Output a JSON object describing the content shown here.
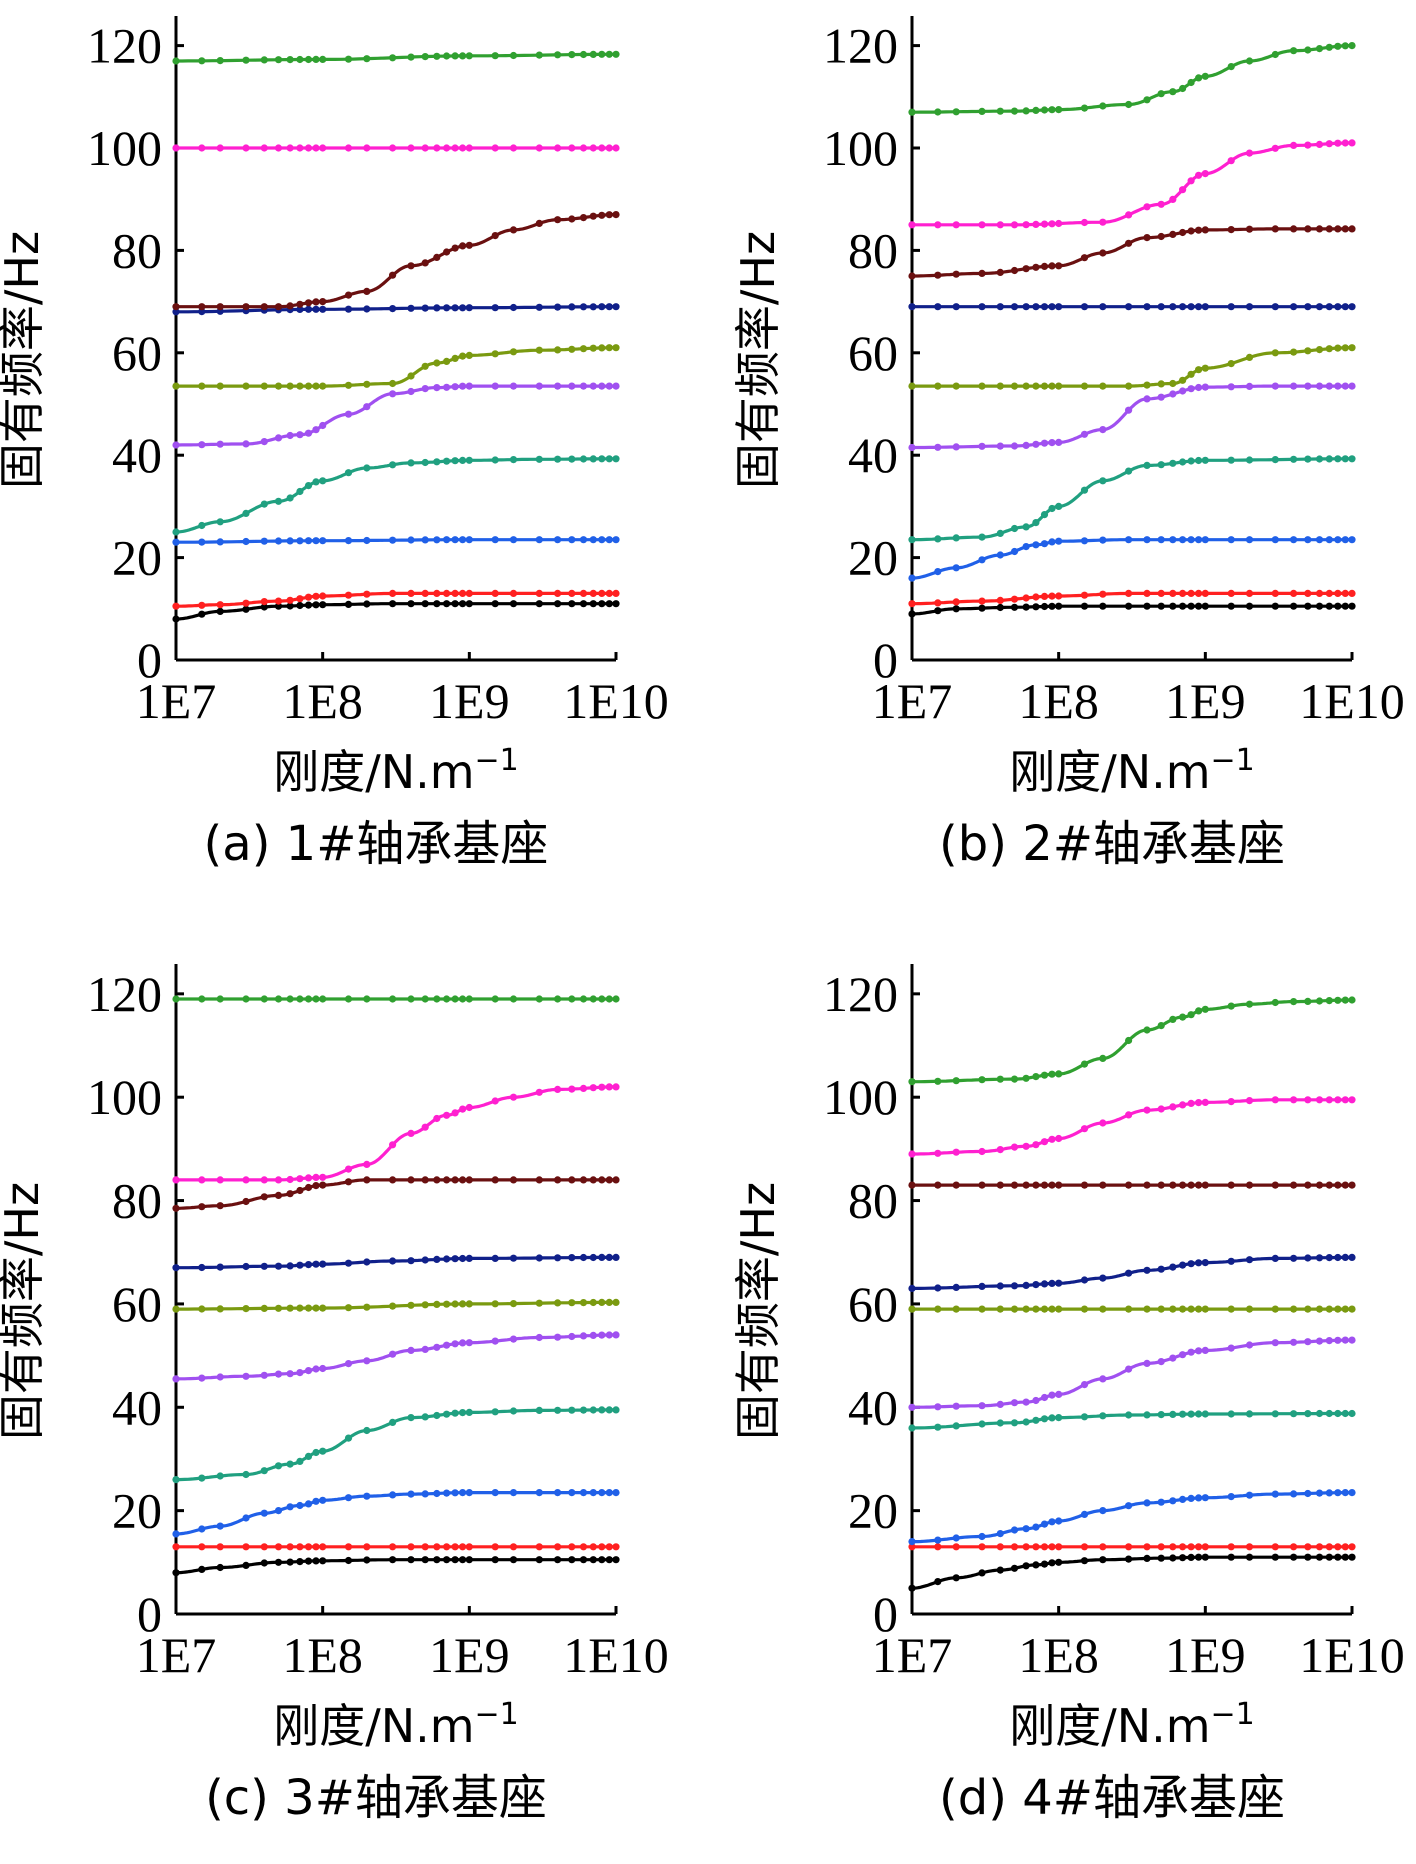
{
  "chart_data": [
    {
      "type": "line",
      "caption": "(a) 1#轴承基座",
      "xlabel_main": "刚度/N.m",
      "xlabel_sup": "−1",
      "ylabel": "固有频率/Hz",
      "x_scale": "log",
      "xlim": [
        10000000.0,
        10000000000.0
      ],
      "ylim": [
        0,
        125
      ],
      "x_ticks": [
        10000000.0,
        100000000.0,
        1000000000.0,
        10000000000.0
      ],
      "x_tick_labels": [
        "1E7",
        "1E8",
        "1E9",
        "1E10"
      ],
      "y_ticks": [
        0,
        20,
        40,
        60,
        80,
        100,
        120
      ],
      "y_tick_labels": [
        "0",
        "20",
        "40",
        "60",
        "80",
        "100",
        "120"
      ],
      "series": [
        {
          "color": "#000000",
          "x": [
            10000000.0,
            20000000.0,
            50000000.0,
            100000000.0,
            300000000.0,
            1000000000.0,
            3000000000.0,
            10000000000.0
          ],
          "y": [
            8,
            9.5,
            10.5,
            10.8,
            11,
            11,
            11,
            11
          ]
        },
        {
          "color": "#ff2020",
          "x": [
            10000000.0,
            20000000.0,
            50000000.0,
            100000000.0,
            300000000.0,
            1000000000.0,
            3000000000.0,
            10000000000.0
          ],
          "y": [
            10.5,
            10.8,
            11.5,
            12.5,
            13,
            13,
            13,
            13
          ]
        },
        {
          "color": "#2060e8",
          "x": [
            10000000.0,
            100000000.0,
            1000000000.0,
            10000000000.0
          ],
          "y": [
            23,
            23.3,
            23.5,
            23.5
          ]
        },
        {
          "color": "#20a080",
          "x": [
            10000000.0,
            20000000.0,
            50000000.0,
            100000000.0,
            200000000.0,
            400000000.0,
            1000000000.0,
            3000000000.0,
            10000000000.0
          ],
          "y": [
            25,
            27,
            31,
            35,
            37.5,
            38.5,
            39,
            39.2,
            39.3
          ]
        },
        {
          "color": "#a050f0",
          "x": [
            10000000.0,
            30000000.0,
            70000000.0,
            150000000.0,
            300000000.0,
            600000000.0,
            1000000000.0,
            10000000000.0
          ],
          "y": [
            42,
            42.2,
            44,
            48,
            52,
            53.2,
            53.5,
            53.5
          ]
        },
        {
          "color": "#7a9a10",
          "x": [
            10000000.0,
            100000000.0,
            300000000.0,
            600000000.0,
            1000000000.0,
            3000000000.0,
            10000000000.0
          ],
          "y": [
            53.5,
            53.5,
            54,
            58,
            59.5,
            60.5,
            61
          ]
        },
        {
          "color": "#10208a",
          "x": [
            10000000.0,
            100000000.0,
            1000000000.0,
            10000000000.0
          ],
          "y": [
            68,
            68.5,
            68.8,
            69
          ]
        },
        {
          "color": "#6a1010",
          "x": [
            10000000.0,
            50000000.0,
            100000000.0,
            200000000.0,
            400000000.0,
            1000000000.0,
            2000000000.0,
            4000000000.0,
            10000000000.0
          ],
          "y": [
            69,
            69,
            70,
            72,
            77,
            81,
            84,
            86,
            87
          ]
        },
        {
          "color": "#ff20d0",
          "x": [
            10000000.0,
            100000000.0,
            1000000000.0,
            10000000000.0
          ],
          "y": [
            100,
            100,
            100,
            100
          ]
        },
        {
          "color": "#30a030",
          "x": [
            10000000.0,
            100000000.0,
            1000000000.0,
            10000000000.0
          ],
          "y": [
            117,
            117.3,
            118,
            118.3
          ]
        }
      ]
    },
    {
      "type": "line",
      "caption": "(b) 2#轴承基座",
      "xlabel_main": "刚度/N.m",
      "xlabel_sup": "−1",
      "ylabel": "固有频率/Hz",
      "x_scale": "log",
      "xlim": [
        10000000.0,
        10000000000.0
      ],
      "ylim": [
        0,
        125
      ],
      "x_ticks": [
        10000000.0,
        100000000.0,
        1000000000.0,
        10000000000.0
      ],
      "x_tick_labels": [
        "1E7",
        "1E8",
        "1E9",
        "1E10"
      ],
      "y_ticks": [
        0,
        20,
        40,
        60,
        80,
        100,
        120
      ],
      "y_tick_labels": [
        "0",
        "20",
        "40",
        "60",
        "80",
        "100",
        "120"
      ],
      "series": [
        {
          "color": "#000000",
          "x": [
            10000000.0,
            20000000.0,
            50000000.0,
            100000000.0,
            300000000.0,
            1000000000.0,
            10000000000.0
          ],
          "y": [
            9,
            10,
            10.3,
            10.5,
            10.5,
            10.5,
            10.5
          ]
        },
        {
          "color": "#ff2020",
          "x": [
            10000000.0,
            30000000.0,
            100000000.0,
            300000000.0,
            1000000000.0,
            10000000000.0
          ],
          "y": [
            11,
            11.5,
            12.5,
            13,
            13,
            13
          ]
        },
        {
          "color": "#2060e8",
          "x": [
            10000000.0,
            20000000.0,
            40000000.0,
            70000000.0,
            100000000.0,
            300000000.0,
            1000000000.0,
            10000000000.0
          ],
          "y": [
            16,
            18,
            20.5,
            22.5,
            23.2,
            23.5,
            23.5,
            23.5
          ]
        },
        {
          "color": "#20a080",
          "x": [
            10000000.0,
            30000000.0,
            60000000.0,
            100000000.0,
            200000000.0,
            400000000.0,
            1000000000.0,
            10000000000.0
          ],
          "y": [
            23.5,
            24,
            26,
            30,
            35,
            38,
            39,
            39.3
          ]
        },
        {
          "color": "#a050f0",
          "x": [
            10000000.0,
            50000000.0,
            100000000.0,
            200000000.0,
            400000000.0,
            1000000000.0,
            3000000000.0,
            10000000000.0
          ],
          "y": [
            41.5,
            41.8,
            42.5,
            45,
            51,
            53.3,
            53.5,
            53.5
          ]
        },
        {
          "color": "#7a9a10",
          "x": [
            10000000.0,
            100000000.0,
            300000000.0,
            600000000.0,
            1000000000.0,
            3000000000.0,
            10000000000.0
          ],
          "y": [
            53.5,
            53.5,
            53.5,
            54,
            57,
            60,
            61
          ]
        },
        {
          "color": "#10208a",
          "x": [
            10000000.0,
            100000000.0,
            1000000000.0,
            10000000000.0
          ],
          "y": [
            69,
            69,
            69,
            69
          ]
        },
        {
          "color": "#6a1010",
          "x": [
            10000000.0,
            30000000.0,
            100000000.0,
            200000000.0,
            400000000.0,
            1000000000.0,
            3000000000.0,
            10000000000.0
          ],
          "y": [
            75,
            75.5,
            77,
            79.5,
            82.5,
            84,
            84.2,
            84.2
          ]
        },
        {
          "color": "#ff20d0",
          "x": [
            10000000.0,
            50000000.0,
            200000000.0,
            500000000.0,
            1000000000.0,
            2000000000.0,
            4000000000.0,
            10000000000.0
          ],
          "y": [
            85,
            85,
            85.5,
            89,
            95,
            99,
            100.5,
            101
          ]
        },
        {
          "color": "#30a030",
          "x": [
            10000000.0,
            50000000.0,
            100000000.0,
            300000000.0,
            600000000.0,
            1000000000.0,
            2000000000.0,
            4000000000.0,
            10000000000.0
          ],
          "y": [
            107,
            107.2,
            107.5,
            108.5,
            111,
            114,
            117,
            119,
            120
          ]
        }
      ]
    },
    {
      "type": "line",
      "caption": "(c) 3#轴承基座",
      "xlabel_main": "刚度/N.m",
      "xlabel_sup": "−1",
      "ylabel": "固有频率/Hz",
      "x_scale": "log",
      "xlim": [
        10000000.0,
        10000000000.0
      ],
      "ylim": [
        0,
        125
      ],
      "x_ticks": [
        10000000.0,
        100000000.0,
        1000000000.0,
        10000000000.0
      ],
      "x_tick_labels": [
        "1E7",
        "1E8",
        "1E9",
        "1E10"
      ],
      "y_ticks": [
        0,
        20,
        40,
        60,
        80,
        100,
        120
      ],
      "y_tick_labels": [
        "0",
        "20",
        "40",
        "60",
        "80",
        "100",
        "120"
      ],
      "series": [
        {
          "color": "#000000",
          "x": [
            10000000.0,
            20000000.0,
            50000000.0,
            100000000.0,
            300000000.0,
            1000000000.0,
            10000000000.0
          ],
          "y": [
            8,
            9,
            10,
            10.3,
            10.5,
            10.5,
            10.5
          ]
        },
        {
          "color": "#ff2020",
          "x": [
            10000000.0,
            100000000.0,
            1000000000.0,
            10000000000.0
          ],
          "y": [
            13,
            13,
            13,
            13
          ]
        },
        {
          "color": "#2060e8",
          "x": [
            10000000.0,
            20000000.0,
            40000000.0,
            70000000.0,
            100000000.0,
            200000000.0,
            400000000.0,
            1000000000.0,
            10000000000.0
          ],
          "y": [
            15.5,
            17,
            19.5,
            21,
            22,
            22.8,
            23.2,
            23.5,
            23.5
          ]
        },
        {
          "color": "#20a080",
          "x": [
            10000000.0,
            30000000.0,
            60000000.0,
            100000000.0,
            200000000.0,
            400000000.0,
            1000000000.0,
            3000000000.0,
            10000000000.0
          ],
          "y": [
            26,
            27,
            29,
            31.5,
            35.5,
            38,
            39,
            39.4,
            39.5
          ]
        },
        {
          "color": "#a050f0",
          "x": [
            10000000.0,
            30000000.0,
            60000000.0,
            100000000.0,
            200000000.0,
            400000000.0,
            1000000000.0,
            3000000000.0,
            10000000000.0
          ],
          "y": [
            45.5,
            46,
            46.5,
            47.5,
            49,
            51,
            52.5,
            53.5,
            54
          ]
        },
        {
          "color": "#7a9a10",
          "x": [
            10000000.0,
            100000000.0,
            1000000000.0,
            10000000000.0
          ],
          "y": [
            59,
            59.2,
            60,
            60.3
          ]
        },
        {
          "color": "#10208a",
          "x": [
            10000000.0,
            50000000.0,
            100000000.0,
            300000000.0,
            1000000000.0,
            10000000000.0
          ],
          "y": [
            67,
            67.3,
            67.7,
            68.3,
            68.8,
            69
          ]
        },
        {
          "color": "#6a1010",
          "x": [
            10000000.0,
            20000000.0,
            50000000.0,
            100000000.0,
            200000000.0,
            500000000.0,
            1000000000.0,
            10000000000.0
          ],
          "y": [
            78.5,
            79,
            81,
            83,
            84,
            84,
            84,
            84
          ]
        },
        {
          "color": "#ff20d0",
          "x": [
            10000000.0,
            50000000.0,
            100000000.0,
            200000000.0,
            400000000.0,
            700000000.0,
            1000000000.0,
            2000000000.0,
            4000000000.0,
            10000000000.0
          ],
          "y": [
            84,
            84,
            84.5,
            87,
            93,
            96.5,
            98,
            100,
            101.5,
            102
          ]
        },
        {
          "color": "#30a030",
          "x": [
            10000000.0,
            100000000.0,
            1000000000.0,
            10000000000.0
          ],
          "y": [
            119,
            119,
            119,
            119
          ]
        }
      ]
    },
    {
      "type": "line",
      "caption": "(d) 4#轴承基座",
      "xlabel_main": "刚度/N.m",
      "xlabel_sup": "−1",
      "ylabel": "固有频率/Hz",
      "x_scale": "log",
      "xlim": [
        10000000.0,
        10000000000.0
      ],
      "ylim": [
        0,
        125
      ],
      "x_ticks": [
        10000000.0,
        100000000.0,
        1000000000.0,
        10000000000.0
      ],
      "x_tick_labels": [
        "1E7",
        "1E8",
        "1E9",
        "1E10"
      ],
      "y_ticks": [
        0,
        20,
        40,
        60,
        80,
        100,
        120
      ],
      "y_tick_labels": [
        "0",
        "20",
        "40",
        "60",
        "80",
        "100",
        "120"
      ],
      "series": [
        {
          "color": "#000000",
          "x": [
            10000000.0,
            20000000.0,
            40000000.0,
            70000000.0,
            100000000.0,
            200000000.0,
            500000000.0,
            1000000000.0,
            10000000000.0
          ],
          "y": [
            5,
            7,
            8.5,
            9.5,
            10,
            10.5,
            10.8,
            11,
            11
          ]
        },
        {
          "color": "#ff2020",
          "x": [
            10000000.0,
            100000000.0,
            1000000000.0,
            10000000000.0
          ],
          "y": [
            13,
            13,
            13,
            13
          ]
        },
        {
          "color": "#2060e8",
          "x": [
            10000000.0,
            30000000.0,
            60000000.0,
            100000000.0,
            200000000.0,
            400000000.0,
            1000000000.0,
            3000000000.0,
            10000000000.0
          ],
          "y": [
            14,
            15,
            16.5,
            18,
            20,
            21.5,
            22.5,
            23.2,
            23.5
          ]
        },
        {
          "color": "#20a080",
          "x": [
            10000000.0,
            50000000.0,
            100000000.0,
            300000000.0,
            1000000000.0,
            10000000000.0
          ],
          "y": [
            36,
            37,
            38,
            38.5,
            38.7,
            38.8
          ]
        },
        {
          "color": "#a050f0",
          "x": [
            10000000.0,
            30000000.0,
            60000000.0,
            100000000.0,
            200000000.0,
            400000000.0,
            1000000000.0,
            3000000000.0,
            10000000000.0
          ],
          "y": [
            40,
            40.3,
            41,
            42.5,
            45.5,
            48.5,
            51,
            52.5,
            53
          ]
        },
        {
          "color": "#7a9a10",
          "x": [
            10000000.0,
            100000000.0,
            1000000000.0,
            10000000000.0
          ],
          "y": [
            59,
            59,
            59,
            59
          ]
        },
        {
          "color": "#10208a",
          "x": [
            10000000.0,
            50000000.0,
            100000000.0,
            200000000.0,
            400000000.0,
            1000000000.0,
            3000000000.0,
            10000000000.0
          ],
          "y": [
            63,
            63.5,
            64,
            65,
            66.5,
            68,
            68.8,
            69
          ]
        },
        {
          "color": "#6a1010",
          "x": [
            10000000.0,
            100000000.0,
            1000000000.0,
            10000000000.0
          ],
          "y": [
            83,
            83,
            83,
            83
          ]
        },
        {
          "color": "#ff20d0",
          "x": [
            10000000.0,
            30000000.0,
            60000000.0,
            100000000.0,
            200000000.0,
            400000000.0,
            1000000000.0,
            3000000000.0,
            10000000000.0
          ],
          "y": [
            89,
            89.5,
            90.5,
            92,
            95,
            97.5,
            99,
            99.5,
            99.5
          ]
        },
        {
          "color": "#30a030",
          "x": [
            10000000.0,
            50000000.0,
            100000000.0,
            200000000.0,
            400000000.0,
            700000000.0,
            1000000000.0,
            2000000000.0,
            4000000000.0,
            10000000000.0
          ],
          "y": [
            103,
            103.5,
            104.5,
            107.5,
            113,
            115.5,
            117,
            118,
            118.5,
            118.8
          ]
        }
      ]
    }
  ]
}
